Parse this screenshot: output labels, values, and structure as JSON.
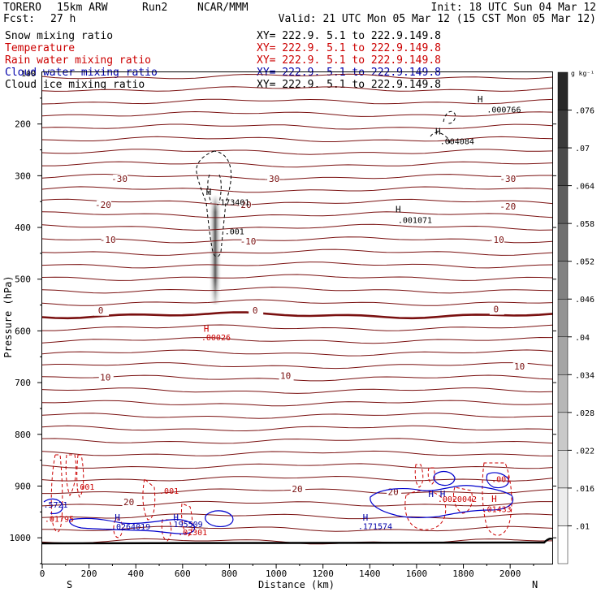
{
  "header": {
    "model": "TORERO",
    "resolution": "15km ARW",
    "run": "Run2",
    "org": "NCAR/MMM",
    "init": "Init: 18 UTC Sun 04 Mar 12",
    "fcst_label": "Fcst:",
    "fcst_value": "27 h",
    "valid": "Valid: 21 UTC Mon 05 Mar 12 (15 CST Mon 05 Mar 12)"
  },
  "legend": [
    {
      "name": "Snow mixing ratio",
      "xy": "XY= 222.9.  5.1 to 222.9.149.8",
      "color": "#000000"
    },
    {
      "name": "Temperature",
      "xy": "XY= 222.9.  5.1 to 222.9.149.8",
      "color": "#cc0000"
    },
    {
      "name": "Rain water mixing ratio",
      "xy": "XY= 222.9.  5.1 to 222.9.149.8",
      "color": "#cc0000"
    },
    {
      "name": "Cloud water mixing ratio",
      "xy": "XY= 222.9.  5.1 to 222.9.149.8",
      "color": "#0000aa"
    },
    {
      "name": "Cloud ice mixing ratio",
      "xy": "XY= 222.9.  5.1 to 222.9.149.8",
      "color": "#000000"
    }
  ],
  "chart_data": {
    "type": "contour",
    "xlabel": "Distance (km)",
    "ylabel": "Pressure (hPa)",
    "xlim": [
      0,
      2180
    ],
    "ylim": [
      1050,
      100
    ],
    "x_ticks": [
      0,
      200,
      400,
      600,
      800,
      1000,
      1200,
      1400,
      1600,
      1800,
      2000
    ],
    "y_ticks": [
      200,
      300,
      400,
      500,
      600,
      700,
      800,
      900,
      1000
    ],
    "x_end_labels": {
      "left": "S",
      "right": "N"
    },
    "y_top_label": "100",
    "colorbar": {
      "unit": "g kg⁻¹",
      "ticks": [
        ".01",
        ".016",
        ".022",
        ".028",
        ".034",
        ".04",
        ".046",
        ".052",
        ".058",
        ".064",
        ".07",
        ".076"
      ]
    },
    "isotherm_labels": [
      {
        "text": "-30",
        "x": 330,
        "y": 312
      },
      {
        "text": "-30",
        "x": 980,
        "y": 312
      },
      {
        "text": "-30",
        "x": 1990,
        "y": 312
      },
      {
        "text": "-20",
        "x": 260,
        "y": 362
      },
      {
        "text": "-20",
        "x": 860,
        "y": 362
      },
      {
        "text": "-20",
        "x": 1990,
        "y": 365
      },
      {
        "text": "-10",
        "x": 280,
        "y": 430
      },
      {
        "text": "-10",
        "x": 880,
        "y": 433
      },
      {
        "text": "-10",
        "x": 1940,
        "y": 430
      },
      {
        "text": "0",
        "x": 250,
        "y": 566
      },
      {
        "text": "0",
        "x": 910,
        "y": 566
      },
      {
        "text": "0",
        "x": 1940,
        "y": 564
      },
      {
        "text": "10",
        "x": 270,
        "y": 696
      },
      {
        "text": "10",
        "x": 1040,
        "y": 693
      },
      {
        "text": "10",
        "x": 2040,
        "y": 675
      },
      {
        "text": "20",
        "x": 370,
        "y": 937
      },
      {
        "text": "20",
        "x": 1090,
        "y": 912
      },
      {
        "text": "20",
        "x": 1500,
        "y": 917
      }
    ],
    "extrema_labels": [
      {
        "text": ".000766",
        "x": 1900,
        "y": 178,
        "color": "#000000"
      },
      {
        "text": ".004084",
        "x": 1700,
        "y": 239,
        "color": "#000000"
      },
      {
        "text": ".173401",
        "x": 740,
        "y": 357,
        "color": "#000000"
      },
      {
        "text": ".001071",
        "x": 1520,
        "y": 391,
        "color": "#000000"
      },
      {
        "text": ".001",
        "x": 780,
        "y": 413,
        "color": "#000000"
      },
      {
        "text": ".00026",
        "x": 680,
        "y": 618,
        "color": "#cc0000"
      },
      {
        "text": ".001",
        "x": 140,
        "y": 907,
        "color": "#cc0000"
      },
      {
        "text": ".001",
        "x": 500,
        "y": 915,
        "color": "#cc0000"
      },
      {
        "text": ".001",
        "x": 1920,
        "y": 892,
        "color": "#cc0000"
      },
      {
        "text": ".0020042",
        "x": 1690,
        "y": 931,
        "color": "#cc0000"
      },
      {
        "text": ".5721",
        "x": 5,
        "y": 942,
        "color": "#0000aa"
      },
      {
        "text": ".01795",
        "x": 10,
        "y": 969,
        "color": "#cc0000"
      },
      {
        "text": ".0264019",
        "x": 295,
        "y": 984,
        "color": "#0000aa"
      },
      {
        "text": ".195509",
        "x": 540,
        "y": 979,
        "color": "#0000aa"
      },
      {
        "text": ".02301",
        "x": 580,
        "y": 995,
        "color": "#cc0000"
      },
      {
        "text": ".171574",
        "x": 1350,
        "y": 983,
        "color": "#0000aa"
      },
      {
        "text": ".01433",
        "x": 1880,
        "y": 950,
        "color": "#cc0000"
      }
    ],
    "h_markers": [
      {
        "x": 1860,
        "y": 158,
        "color": "#000000"
      },
      {
        "x": 1680,
        "y": 220,
        "color": "#000000"
      },
      {
        "x": 700,
        "y": 337,
        "color": "#000000"
      },
      {
        "x": 1510,
        "y": 371,
        "color": "#000000"
      },
      {
        "x": 690,
        "y": 602,
        "color": "#cc0000"
      },
      {
        "x": 310,
        "y": 967,
        "color": "#0000aa"
      },
      {
        "x": 560,
        "y": 967,
        "color": "#0000aa"
      },
      {
        "x": 1370,
        "y": 967,
        "color": "#0000aa"
      },
      {
        "x": 1650,
        "y": 921,
        "color": "#0000aa"
      },
      {
        "x": 1700,
        "y": 921,
        "color": "#0000aa"
      },
      {
        "x": 1920,
        "y": 931,
        "color": "#cc0000"
      }
    ]
  }
}
